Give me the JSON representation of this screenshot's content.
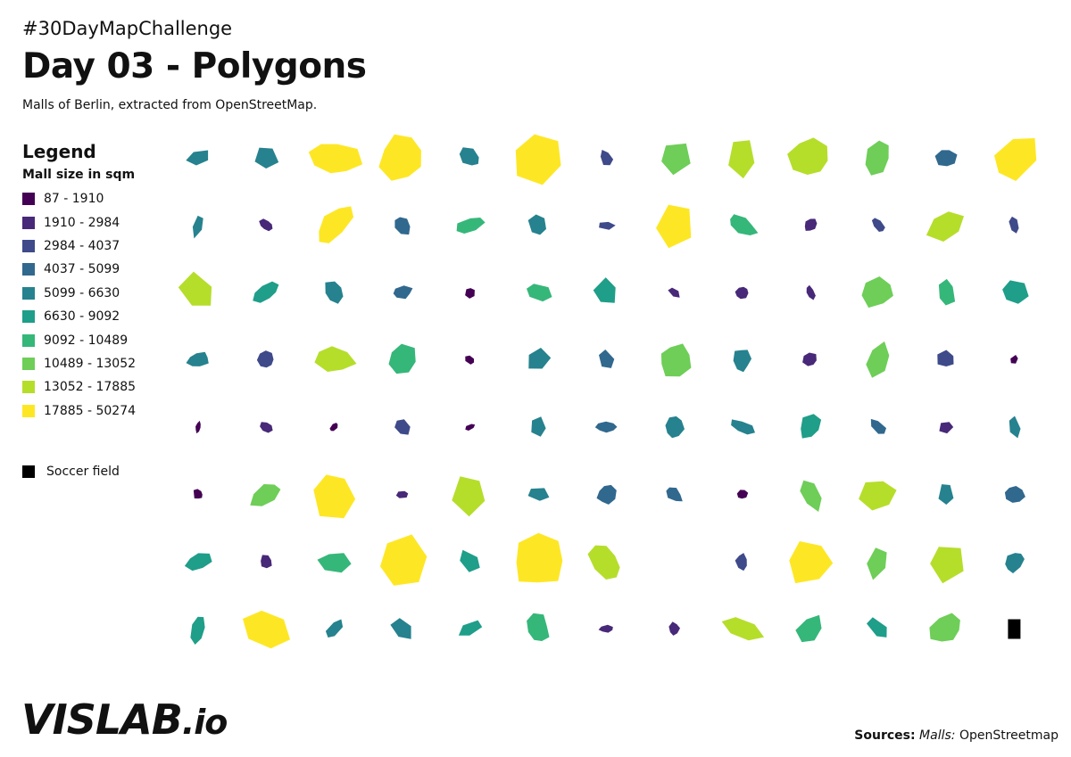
{
  "header": {
    "hashtag": "#30DayMapChallenge",
    "title": "Day 03 - Polygons",
    "subtitle": "Malls of Berlin, extracted from OpenStreetMap."
  },
  "legend": {
    "title": "Legend",
    "subtitle": "Mall size in sqm",
    "classes": [
      {
        "label": "87 - 1910",
        "color": "#440154"
      },
      {
        "label": "1910 - 2984",
        "color": "#482878"
      },
      {
        "label": "2984 - 4037",
        "color": "#3e4a89"
      },
      {
        "label": "4037 - 5099",
        "color": "#31688e"
      },
      {
        "label": "5099 - 6630",
        "color": "#26828e"
      },
      {
        "label": "6630 - 9092",
        "color": "#1f9e89"
      },
      {
        "label": "9092 - 10489",
        "color": "#35b779"
      },
      {
        "label": "10489 - 13052",
        "color": "#6ece58"
      },
      {
        "label": "13052 - 17885",
        "color": "#b5de2b"
      },
      {
        "label": "17885 - 50274",
        "color": "#fde725"
      }
    ],
    "soccer_label": "Soccer field",
    "soccer_color": "#000000"
  },
  "logo": {
    "main": "VISLAB",
    "tld": ".io"
  },
  "sources": {
    "label": "Sources:",
    "italic": "Malls:",
    "value": "OpenStreetmap"
  },
  "grid": {
    "columns": 13,
    "rows": [
      [
        "c4",
        "c4",
        "c9",
        "c9",
        "c4",
        "c9",
        "c2",
        "c7",
        "c8",
        "c8",
        "c7",
        "c3",
        "c9"
      ],
      [
        "c4",
        "c1",
        "c9",
        "c3",
        "c6",
        "c4",
        "c2",
        "c9",
        "c6",
        "c1",
        "c2",
        "c8",
        "c2"
      ],
      [
        "c8",
        "c5",
        "c4",
        "c3",
        "c0",
        "c6",
        "c5",
        "c1",
        "c1",
        "c1",
        "c7",
        "c6",
        "c5"
      ],
      [
        "c4",
        "c2",
        "c8",
        "c6",
        "c0",
        "c4",
        "c3",
        "c7",
        "c4",
        "c1",
        "c7",
        "c2",
        "c0"
      ],
      [
        "c0",
        "c1",
        "c0",
        "c2",
        "c0",
        "c4",
        "c3",
        "c4",
        "c4",
        "c5",
        "c3",
        "c1",
        "c4"
      ],
      [
        "c0",
        "c7",
        "c9",
        "c1",
        "c8",
        "c4",
        "c3",
        "c3",
        "c0",
        "c7",
        "c8",
        "c4",
        "c3"
      ],
      [
        "c5",
        "c1",
        "c6",
        "c9",
        "c5",
        "c9",
        "c8",
        "none",
        "c2",
        "c9",
        "c7",
        "c8",
        "c4"
      ],
      [
        "c5",
        "c9",
        "c4",
        "c4",
        "c5",
        "c6",
        "c1",
        "c1",
        "c8",
        "c6",
        "c5",
        "c7",
        "soccer"
      ]
    ]
  }
}
